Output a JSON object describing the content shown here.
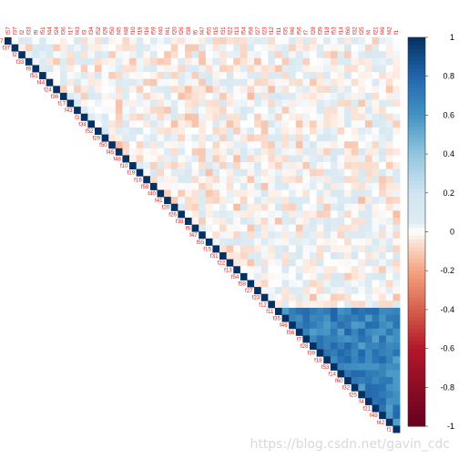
{
  "chart_data": {
    "type": "heatmap",
    "subtype": "correlation-matrix-upper-triangle",
    "title": "",
    "xlabel": "",
    "ylabel": "",
    "variables": [
      "f57",
      "f37",
      "f2",
      "f33",
      "f9",
      "f51",
      "f44",
      "f24",
      "f36",
      "f17",
      "f43",
      "f3",
      "f34",
      "f52",
      "f29",
      "f50",
      "f45",
      "f48",
      "f10",
      "f19",
      "f16",
      "f59",
      "f40",
      "f41",
      "f20",
      "f26",
      "f38",
      "f6",
      "f47",
      "f55",
      "f15",
      "f31",
      "f22",
      "f13",
      "f54",
      "f58",
      "f27",
      "f23",
      "f12",
      "f11",
      "f35",
      "f46",
      "f56",
      "f7",
      "f28",
      "f39",
      "f18",
      "f53",
      "f14",
      "f60",
      "f32",
      "f25",
      "f4",
      "f21",
      "f49",
      "f42",
      "f1"
    ],
    "groups": {
      "noise_vars": [
        "f57",
        "f37",
        "f2",
        "f33",
        "f9",
        "f51",
        "f44",
        "f24",
        "f36",
        "f17",
        "f43",
        "f3",
        "f34",
        "f52",
        "f29",
        "f50",
        "f45",
        "f48",
        "f10",
        "f19",
        "f16",
        "f59",
        "f40",
        "f41",
        "f20",
        "f26",
        "f38",
        "f6",
        "f47",
        "f55",
        "f15",
        "f31",
        "f22",
        "f13",
        "f54",
        "f58",
        "f27",
        "f23",
        "f12"
      ],
      "correlated_block": [
        "f11",
        "f35",
        "f46",
        "f56",
        "f7",
        "f28",
        "f39",
        "f18",
        "f53",
        "f14",
        "f60",
        "f32",
        "f25",
        "f4",
        "f21",
        "f49",
        "f42",
        "f1"
      ]
    },
    "typical_values": {
      "noise_pair_range": [
        -0.15,
        0.15
      ],
      "block_pair_range": [
        0.55,
        0.8
      ],
      "diagonal": 1
    },
    "colorbar": {
      "min": -1,
      "max": 1,
      "ticks": [
        "1",
        "0.8",
        "0.6",
        "0.4",
        "0.2",
        "0",
        "-0.2",
        "-0.4",
        "-0.6",
        "-0.8",
        "-1"
      ]
    },
    "colors": {
      "negative": "#67001f",
      "mid": "#ffffff",
      "positive": "#053061",
      "label": "#e8231f"
    },
    "grid": false,
    "legend": "right"
  },
  "watermark": "https://blog.csdn.net/gavin_cdc"
}
